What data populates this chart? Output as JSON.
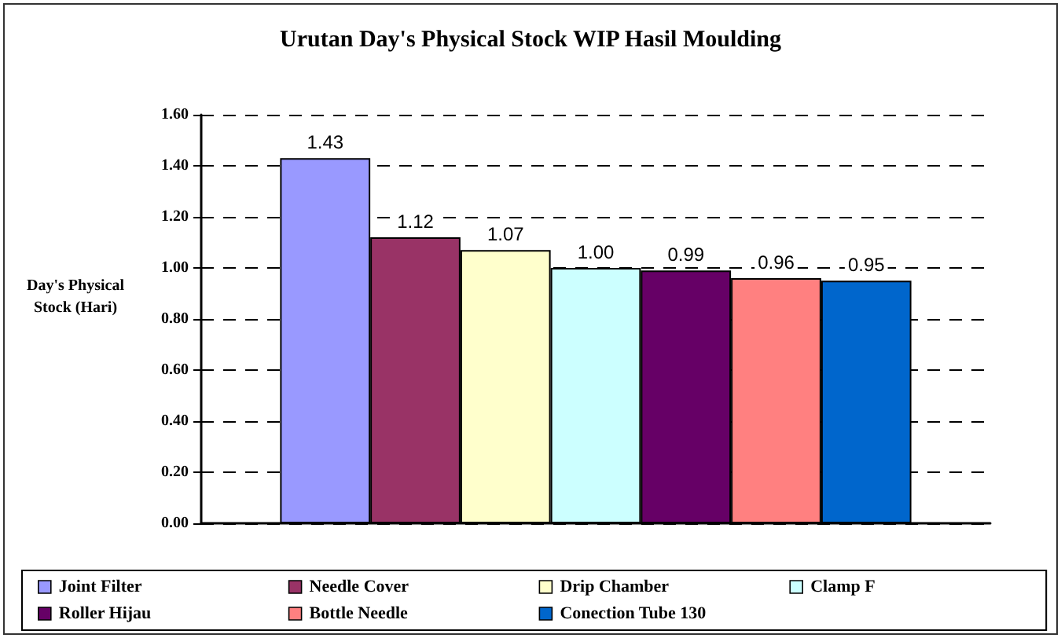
{
  "chart_data": {
    "type": "bar",
    "title": "Urutan Day's Physical Stock WIP Hasil Moulding",
    "ylabel": "Day's Physical Stock (Hari)",
    "categories": [
      null
    ],
    "series": [
      {
        "name": "Joint Filter",
        "color": "#9999ff",
        "values": [
          1.43
        ],
        "value_labels": [
          "1.43"
        ]
      },
      {
        "name": "Needle Cover",
        "color": "#993366",
        "values": [
          1.12
        ],
        "value_labels": [
          "1.12"
        ]
      },
      {
        "name": "Drip Chamber",
        "color": "#ffffcc",
        "values": [
          1.07
        ],
        "value_labels": [
          "1.07"
        ]
      },
      {
        "name": "Clamp F",
        "color": "#ccffff",
        "values": [
          1.0
        ],
        "value_labels": [
          "1.00"
        ]
      },
      {
        "name": "Roller Hijau",
        "color": "#660066",
        "values": [
          0.99
        ],
        "value_labels": [
          "0.99"
        ]
      },
      {
        "name": "Bottle Needle",
        "color": "#ff8080",
        "values": [
          0.96
        ],
        "value_labels": [
          "0.96"
        ]
      },
      {
        "name": "Conection Tube 130",
        "color": "#0066cc",
        "values": [
          0.95
        ],
        "value_labels": [
          "0.95"
        ]
      }
    ],
    "ylim": [
      0,
      1.6
    ],
    "yticks": [
      {
        "value": 0,
        "label": "0.00"
      },
      {
        "value": 0.2,
        "label": "0.20"
      },
      {
        "value": 0.4,
        "label": "0.40"
      },
      {
        "value": 0.6,
        "label": "0.60"
      },
      {
        "value": 0.8,
        "label": "0.80"
      },
      {
        "value": 1.0,
        "label": "1.00"
      },
      {
        "value": 1.2,
        "label": "1.20"
      },
      {
        "value": 1.4,
        "label": "1.40"
      },
      {
        "value": 1.6,
        "label": "1.60"
      }
    ],
    "grid": "y",
    "legend": "bottom",
    "tick_labels": "y"
  }
}
